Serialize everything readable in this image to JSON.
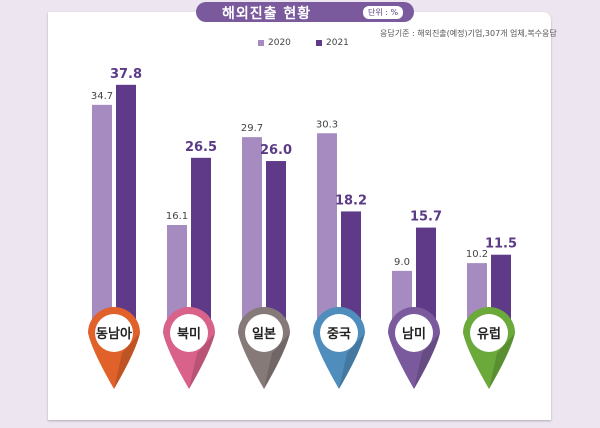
{
  "header": {
    "title": "해외진출 현황",
    "unit": "단위 : %",
    "basis": "응답기준 : 해외진출(예정)기업,307개 업체,복수응답"
  },
  "chart_data": {
    "type": "bar",
    "title": "해외진출 현황",
    "categories": [
      "동남아",
      "북미",
      "일본",
      "중국",
      "남미",
      "유럽"
    ],
    "series": [
      {
        "name": "2020",
        "values": [
          34.7,
          16.1,
          29.7,
          30.3,
          9.0,
          10.2
        ],
        "color": "#a68bc0"
      },
      {
        "name": "2021",
        "values": [
          37.8,
          26.5,
          26.0,
          18.2,
          15.7,
          11.5
        ],
        "color": "#5e3a88"
      }
    ],
    "pin_colors": [
      "#e0622a",
      "#d9628a",
      "#857a78",
      "#4f8dbd",
      "#7a5a9c",
      "#6aa93a"
    ],
    "legend": "top",
    "grid": false
  }
}
